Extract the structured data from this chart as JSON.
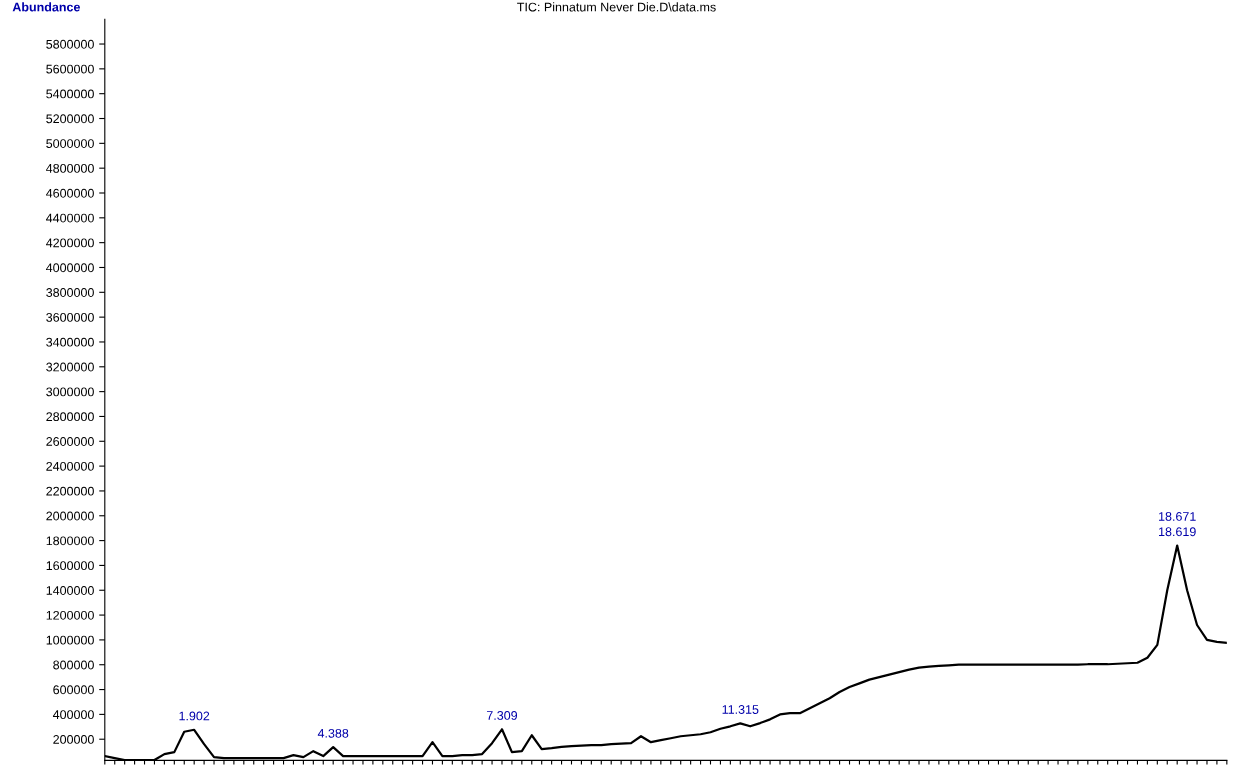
{
  "chart_data": {
    "type": "line",
    "title": "TIC: Pinnatum Never Die.D\\data.ms",
    "ylabel": "Abundance",
    "categories": [
      null,
      null,
      null,
      null,
      null,
      null,
      null,
      null,
      null,
      null,
      null,
      null,
      null,
      null,
      null,
      null,
      null,
      null,
      null,
      null,
      null,
      null,
      null,
      null,
      null,
      null,
      null,
      null,
      null,
      null,
      null,
      null,
      null,
      null,
      null,
      null,
      null,
      null,
      null,
      null,
      null,
      null,
      null,
      null,
      null,
      null,
      null,
      null,
      null,
      null,
      null,
      null,
      null,
      null,
      null,
      null,
      null,
      null,
      null,
      null,
      null,
      null,
      null,
      null,
      null,
      null,
      null,
      null,
      null,
      null,
      null,
      null,
      null,
      null,
      null,
      null,
      null,
      null,
      null,
      null,
      null,
      null,
      null,
      null,
      null,
      null,
      null,
      null,
      null,
      null,
      null,
      null,
      null,
      null,
      null,
      null,
      null,
      null,
      null,
      null,
      null,
      null,
      null,
      null,
      null,
      null,
      null,
      null,
      null,
      null,
      null,
      null,
      null,
      null
    ],
    "series": [
      {
        "color": "#000000",
        "values": [
          64000,
          48000,
          32000,
          32000,
          32000,
          32000,
          80000,
          96000,
          260000,
          276000,
          160000,
          56000,
          48000,
          48000,
          48000,
          48000,
          48000,
          48000,
          48000,
          72000,
          56000,
          104000,
          64000,
          136000,
          64000,
          64000,
          64000,
          64000,
          64000,
          64000,
          64000,
          64000,
          64000,
          176000,
          64000,
          64000,
          72000,
          72000,
          80000,
          168000,
          280000,
          96000,
          104000,
          232000,
          120000,
          128000,
          138000,
          144000,
          148000,
          152000,
          152000,
          160000,
          164000,
          168000,
          224000,
          176000,
          192000,
          208000,
          224000,
          232000,
          240000,
          256000,
          284000,
          304000,
          328000,
          304000,
          330000,
          360000,
          400000,
          410000,
          410000,
          450000,
          490000,
          530000,
          580000,
          620000,
          650000,
          680000,
          700000,
          720000,
          740000,
          760000,
          776000,
          784000,
          790000,
          795000,
          800000,
          800000,
          800000,
          800000,
          800000,
          800000,
          800000,
          800000,
          800000,
          800000,
          800000,
          800000,
          800000,
          804000,
          804000,
          804000,
          808000,
          812000,
          816000,
          856000,
          960000,
          1400000,
          1760000,
          1400000,
          1120000,
          1000000,
          984000,
          976000
        ]
      }
    ],
    "ylim": [
      30000,
      6000000
    ],
    "yticks": [
      200000,
      400000,
      600000,
      800000,
      1000000,
      1200000,
      1400000,
      1600000,
      1800000,
      2000000,
      2200000,
      2400000,
      2600000,
      2800000,
      3000000,
      3200000,
      3400000,
      3600000,
      3800000,
      4000000,
      4200000,
      4400000,
      4600000,
      4800000,
      5000000,
      5200000,
      5400000,
      5600000,
      5800000
    ],
    "grid": false,
    "annotations": [
      {
        "text": "1.902",
        "y": 276000
      },
      {
        "text": "4.388",
        "y": 136000
      },
      {
        "text": "7.309",
        "y": 280000
      },
      {
        "text": "11.315",
        "y": 328000
      },
      {
        "text": "18.671",
        "y": 1760000
      },
      {
        "text": "18.619",
        "y": 1760000
      }
    ]
  }
}
